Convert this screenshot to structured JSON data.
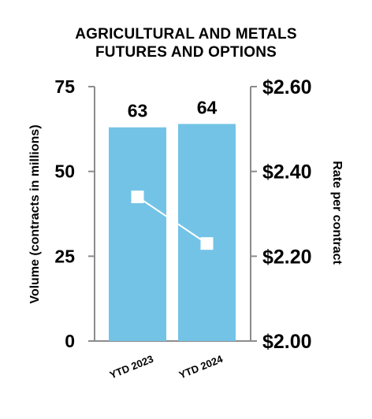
{
  "chart_data": {
    "type": "bar",
    "title_lines": [
      "AGRICULTURAL AND METALS",
      "FUTURES AND OPTIONS"
    ],
    "categories": [
      "YTD 2023",
      "YTD 2024"
    ],
    "series": [
      {
        "values": [
          63,
          64
        ],
        "axis": "left",
        "mark": "bar",
        "color": "#73c3e7"
      },
      {
        "values": [
          2.34,
          2.23
        ],
        "axis": "right",
        "mark": "line-square",
        "color": "#ffffff"
      }
    ],
    "bar_value_labels": [
      "63",
      "64"
    ],
    "ylabel": "Volume (contracts in millions)",
    "ylabel_right": "Rate per contract",
    "ylim": [
      0,
      75
    ],
    "ylim_right": [
      2.0,
      2.6
    ],
    "yticks": [
      0,
      25,
      50,
      75
    ],
    "ytick_labels": [
      "0",
      "25",
      "50",
      "75"
    ],
    "yticks_right": [
      2.0,
      2.2,
      2.4,
      2.6
    ],
    "ytick_labels_right": [
      "$2.00",
      "$2.20",
      "$2.40",
      "$2.60"
    ],
    "grid": false,
    "legend": "none"
  }
}
